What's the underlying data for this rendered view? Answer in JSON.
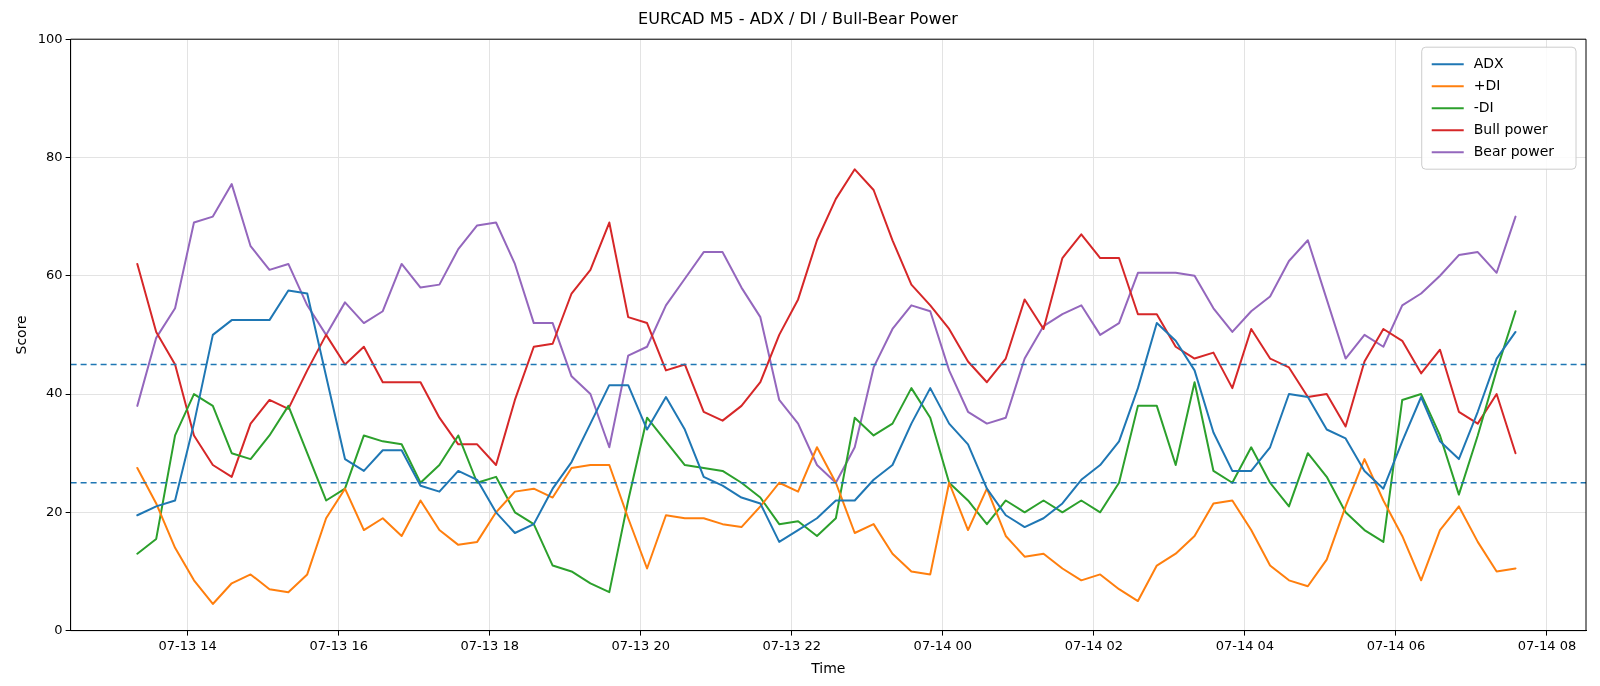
{
  "chart_data": {
    "type": "line",
    "title": "EURCAD M5 - ADX / DI / Bull-Bear Power",
    "xlabel": "Time",
    "ylabel": "Score",
    "x": [
      "--07-13T13:20",
      "--07-13T13:35",
      "--07-13T13:50",
      "--07-13T14:05",
      "--07-13T14:20",
      "--07-13T14:35",
      "--07-13T14:50",
      "--07-13T15:05",
      "--07-13T15:20",
      "--07-13T15:35",
      "--07-13T15:50",
      "--07-13T16:05",
      "--07-13T16:20",
      "--07-13T16:35",
      "--07-13T16:50",
      "--07-13T17:05",
      "--07-13T17:20",
      "--07-13T17:35",
      "--07-13T17:50",
      "--07-13T18:05",
      "--07-13T18:20",
      "--07-13T18:35",
      "--07-13T18:50",
      "--07-13T19:05",
      "--07-13T19:20",
      "--07-13T19:35",
      "--07-13T19:50",
      "--07-13T20:05",
      "--07-13T20:20",
      "--07-13T20:35",
      "--07-13T20:50",
      "--07-13T21:05",
      "--07-13T21:20",
      "--07-13T21:35",
      "--07-13T21:50",
      "--07-13T22:05",
      "--07-13T22:20",
      "--07-13T22:35",
      "--07-13T22:50",
      "--07-13T23:05",
      "--07-13T23:20",
      "--07-13T23:35",
      "--07-13T23:50",
      "--07-14T00:05",
      "--07-14T00:20",
      "--07-14T00:35",
      "--07-14T00:50",
      "--07-14T01:05",
      "--07-14T01:20",
      "--07-14T01:35",
      "--07-14T01:50",
      "--07-14T02:05",
      "--07-14T02:20",
      "--07-14T02:35",
      "--07-14T02:50",
      "--07-14T03:05",
      "--07-14T03:20",
      "--07-14T03:35",
      "--07-14T03:50",
      "--07-14T04:05",
      "--07-14T04:20",
      "--07-14T04:35",
      "--07-14T04:50",
      "--07-14T05:05",
      "--07-14T05:20",
      "--07-14T05:35",
      "--07-14T05:50",
      "--07-14T06:05",
      "--07-14T06:20",
      "--07-14T06:35",
      "--07-14T06:50",
      "--07-14T07:05",
      "--07-14T07:20",
      "--07-14T07:35"
    ],
    "series": [
      {
        "name": "ADX",
        "color": "#1f77b4",
        "values": [
          19.5,
          21,
          22,
          35,
          50,
          52.5,
          52.5,
          52.5,
          57.5,
          57,
          43,
          29,
          27,
          30.5,
          30.5,
          24.5,
          23.5,
          27,
          25.5,
          20,
          16.5,
          18,
          24,
          28.5,
          35,
          41.5,
          41.5,
          34,
          39.5,
          34,
          26,
          24.5,
          22.5,
          21.5,
          15,
          17,
          19,
          22,
          22,
          25.5,
          28,
          35,
          41,
          35,
          31.5,
          24,
          19.5,
          17.5,
          19,
          21.5,
          25.5,
          28,
          32,
          41,
          52,
          49,
          44,
          33.5,
          27,
          27,
          31,
          40,
          39.5,
          34,
          32.5,
          27,
          24,
          32,
          39.5,
          32,
          29,
          37,
          46,
          50.5
        ]
      },
      {
        "name": "+DI",
        "color": "#ff7f0e",
        "values": [
          27.5,
          21.5,
          14,
          8.5,
          4.5,
          8,
          9.5,
          7,
          6.5,
          9.5,
          19,
          24,
          17,
          19,
          16,
          22,
          17,
          14.5,
          15,
          20,
          23.5,
          24,
          22.5,
          27.5,
          28,
          28,
          19,
          10.5,
          19.5,
          19,
          19,
          18,
          17.5,
          21,
          25,
          23.5,
          31,
          25,
          16.5,
          18,
          13,
          10,
          9.5,
          25,
          17,
          24,
          16,
          12.5,
          13,
          10.5,
          8.5,
          9.5,
          7,
          5,
          11,
          13,
          16,
          21.5,
          22,
          17,
          11,
          8.5,
          7.5,
          12,
          21,
          29,
          22,
          16,
          8.5,
          17,
          21,
          15,
          10,
          10.5
        ]
      },
      {
        "name": "-DI",
        "color": "#2ca02c",
        "values": [
          13,
          15.5,
          33,
          40,
          38,
          30,
          29,
          33,
          38,
          30,
          22,
          24,
          33,
          32,
          31.5,
          25,
          28,
          33,
          25,
          26,
          20,
          18,
          11,
          10,
          8,
          6.5,
          22,
          36,
          32,
          28,
          27.5,
          27,
          25,
          22.5,
          18,
          18.5,
          16,
          19,
          36,
          33,
          35,
          41,
          36,
          25,
          22,
          18,
          22,
          20,
          22,
          20,
          22,
          20,
          25,
          38,
          38,
          28,
          42,
          27,
          25,
          31,
          25,
          21,
          30,
          26,
          20,
          17,
          15,
          39,
          40,
          33,
          23,
          33,
          44,
          54
        ]
      },
      {
        "name": "Bull power",
        "color": "#d62728",
        "values": [
          62,
          50.5,
          45,
          33,
          28,
          26,
          35,
          39,
          37.5,
          44,
          50,
          45,
          48,
          42,
          42,
          42,
          36,
          31.5,
          31.5,
          28,
          39,
          48,
          48.5,
          57,
          61,
          69,
          53,
          52,
          44,
          45,
          37,
          35.5,
          38,
          42,
          50,
          56,
          66,
          73,
          78,
          74.5,
          66,
          58.5,
          55,
          51,
          45.5,
          42,
          46,
          56,
          51,
          63,
          67,
          63,
          63,
          53.5,
          53.5,
          48,
          46,
          47,
          41,
          51,
          46,
          44.5,
          39.5,
          40,
          34.5,
          45.5,
          51,
          49,
          43.5,
          47.5,
          37,
          35,
          40,
          30
        ]
      },
      {
        "name": "Bear power",
        "color": "#9467bd",
        "values": [
          38,
          49.5,
          54.5,
          69,
          70,
          75.5,
          65,
          61,
          62,
          55,
          50,
          55.5,
          52,
          54,
          62,
          58,
          58.5,
          64.5,
          68.5,
          69,
          62,
          52,
          52,
          43,
          40,
          31,
          46.5,
          48,
          55,
          59.5,
          64,
          64,
          58,
          53,
          39,
          35,
          28,
          25,
          31,
          44.5,
          51,
          55,
          54,
          44,
          37,
          35,
          36,
          46,
          51.5,
          53.5,
          55,
          50,
          52,
          60.5,
          60.5,
          60.5,
          60,
          54.5,
          50.5,
          54,
          56.5,
          62.5,
          66,
          56,
          46,
          50,
          48,
          55,
          57,
          60,
          63.5,
          64,
          60.5,
          70
        ]
      }
    ],
    "xlim": [
      "--07-13T12:27",
      "--07-14T08:31"
    ],
    "xticks": [
      {
        "value": "--07-13T14:00",
        "label": "07-13 14"
      },
      {
        "value": "--07-13T16:00",
        "label": "07-13 16"
      },
      {
        "value": "--07-13T18:00",
        "label": "07-13 18"
      },
      {
        "value": "--07-13T20:00",
        "label": "07-13 20"
      },
      {
        "value": "--07-13T22:00",
        "label": "07-13 22"
      },
      {
        "value": "--07-14T00:00",
        "label": "07-14 00"
      },
      {
        "value": "--07-14T02:00",
        "label": "07-14 02"
      },
      {
        "value": "--07-14T04:00",
        "label": "07-14 04"
      },
      {
        "value": "--07-14T06:00",
        "label": "07-14 06"
      },
      {
        "value": "--07-14T08:00",
        "label": "07-14 08"
      }
    ],
    "ylim": [
      0,
      100
    ],
    "yticks": [
      0,
      20,
      40,
      60,
      80,
      100
    ],
    "ref_lines": [
      {
        "axis": "y",
        "value": 45,
        "color": "#1f77b4",
        "line_style": "dashed"
      },
      {
        "axis": "y",
        "value": 25,
        "color": "#1f77b4",
        "line_style": "dashed"
      }
    ],
    "grid": true,
    "legend": "top right",
    "line_style": "solid"
  }
}
